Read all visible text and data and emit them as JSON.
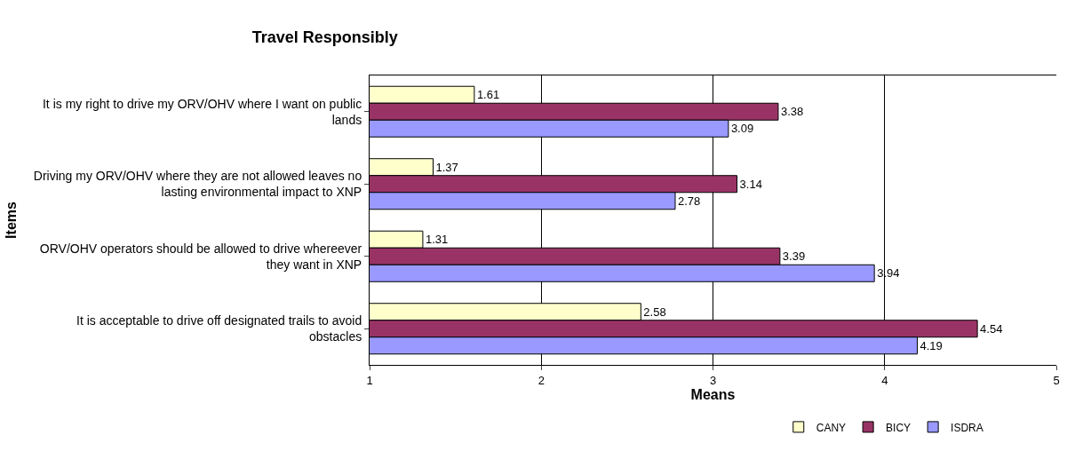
{
  "chart_data": {
    "type": "bar",
    "orientation": "horizontal",
    "title": "Travel Responsibly",
    "xlabel": "Means",
    "ylabel": "Items",
    "categories": [
      "It is my right to drive my ORV/OHV where I want on public lands",
      "Driving my ORV/OHV where they are not allowed leaves no lasting environmental impact to XNP",
      "ORV/OHV operators should be allowed to drive whereever they want in XNP",
      "It is acceptable to drive off designated trails to avoid obstacles"
    ],
    "series": [
      {
        "name": "CANY",
        "color": "#ffffcc",
        "values": [
          1.61,
          1.37,
          1.31,
          2.58
        ]
      },
      {
        "name": "BICY",
        "color": "#993366",
        "values": [
          3.38,
          3.14,
          3.39,
          4.54
        ]
      },
      {
        "name": "ISDRA",
        "color": "#9999ff",
        "values": [
          3.09,
          2.78,
          3.94,
          4.19
        ]
      }
    ],
    "xlim": [
      1,
      5
    ],
    "xticks": [
      1,
      2,
      3,
      4,
      5
    ],
    "grid": "x",
    "legend": "bottom",
    "data_labels": true
  }
}
